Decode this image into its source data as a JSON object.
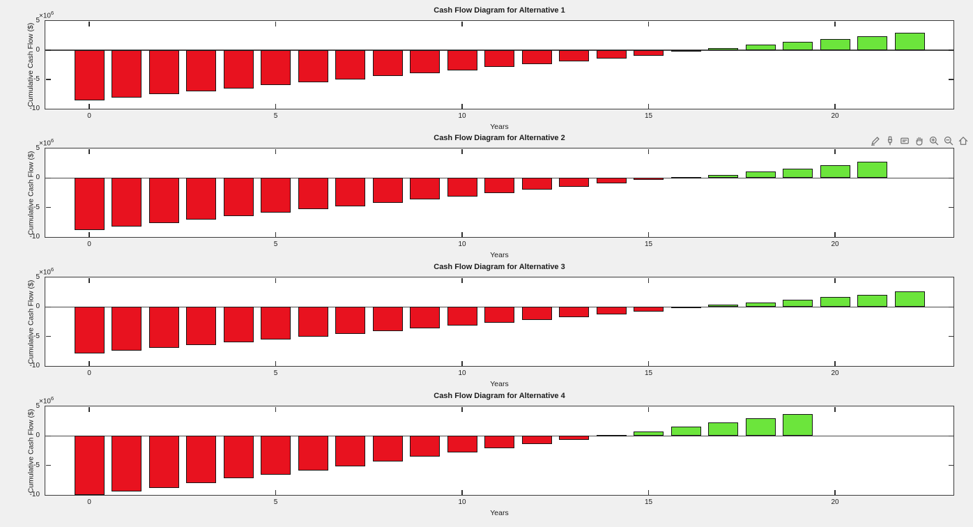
{
  "figure": {
    "background_color": "#f0f0f0",
    "axes_background_color": "#ffffff",
    "axis_line_color": "#3a3a3a",
    "text_color": "#1c1c1c",
    "negative_bar_color": "#e8121f",
    "positive_bar_color": "#6ce53c",
    "bar_edge_color": "#151515",
    "toolbar_icon_color": "#737373"
  },
  "toolbar": {
    "icons": [
      {
        "name": "export-icon"
      },
      {
        "name": "brush-icon"
      },
      {
        "name": "datatips-icon"
      },
      {
        "name": "pan-icon"
      },
      {
        "name": "zoom-in-icon"
      },
      {
        "name": "zoom-out-icon"
      },
      {
        "name": "restore-view-icon"
      }
    ]
  },
  "chart_data": [
    {
      "type": "bar",
      "title": "Cash Flow Diagram for Alternative 1",
      "xlabel": "Years",
      "ylabel": "Cumulative Cash Flow ($)",
      "y_axis_offset": {
        "base": "×10",
        "exponent": "6"
      },
      "values_unit": "millions of $ (×10^6)",
      "ylim": [
        -10,
        5
      ],
      "yticks": [
        5,
        0,
        -5,
        -10
      ],
      "y_tick_labels": [
        "5",
        "0",
        "-5",
        "-10"
      ],
      "xticks": [
        0,
        5,
        10,
        15,
        20
      ],
      "x_tick_labels": [
        "0",
        "5",
        "10",
        "15",
        "20"
      ],
      "years": [
        0,
        1,
        2,
        3,
        4,
        5,
        6,
        7,
        8,
        9,
        10,
        11,
        12,
        13,
        14,
        15,
        16,
        17,
        18,
        19,
        20,
        21,
        22
      ],
      "values": [
        -8.6,
        -8.05,
        -7.5,
        -7.0,
        -6.5,
        -6.0,
        -5.45,
        -4.95,
        -4.4,
        -3.9,
        -3.4,
        -2.9,
        -2.4,
        -1.9,
        -1.4,
        -0.9,
        -0.2,
        0.35,
        0.9,
        1.4,
        1.9,
        2.4,
        2.95
      ],
      "colors": {
        "negative": "#e8121f",
        "positive": "#6ce53c"
      },
      "grid": false
    },
    {
      "type": "bar",
      "title": "Cash Flow Diagram for Alternative 2",
      "xlabel": "Years",
      "ylabel": "Cumulative Cash Flow ($)",
      "y_axis_offset": {
        "base": "×10",
        "exponent": "6"
      },
      "values_unit": "millions of $ (×10^6)",
      "ylim": [
        -10,
        5
      ],
      "yticks": [
        5,
        0,
        -5,
        -10
      ],
      "y_tick_labels": [
        "5",
        "0",
        "-5",
        "-10"
      ],
      "xticks": [
        0,
        5,
        10,
        15,
        20
      ],
      "x_tick_labels": [
        "0",
        "5",
        "10",
        "15",
        "20"
      ],
      "years": [
        0,
        1,
        2,
        3,
        4,
        5,
        6,
        7,
        8,
        9,
        10,
        11,
        12,
        13,
        14,
        15,
        16,
        17,
        18,
        19,
        20,
        21
      ],
      "values": [
        -8.85,
        -8.2,
        -7.6,
        -7.0,
        -6.45,
        -5.9,
        -5.3,
        -4.8,
        -4.25,
        -3.65,
        -3.1,
        -2.55,
        -2.0,
        -1.45,
        -0.9,
        -0.35,
        0.05,
        0.5,
        1.05,
        1.55,
        2.15,
        2.8
      ],
      "colors": {
        "negative": "#e8121f",
        "positive": "#6ce53c"
      },
      "grid": false
    },
    {
      "type": "bar",
      "title": "Cash Flow Diagram for Alternative 3",
      "xlabel": "Years",
      "ylabel": "Cumulative Cash Flow ($)",
      "y_axis_offset": {
        "base": "×10",
        "exponent": "6"
      },
      "values_unit": "millions of $ (×10^6)",
      "ylim": [
        -10,
        5
      ],
      "yticks": [
        5,
        0,
        -5,
        -10
      ],
      "y_tick_labels": [
        "5",
        "0",
        "-5",
        "-10"
      ],
      "xticks": [
        0,
        5,
        10,
        15,
        20
      ],
      "x_tick_labels": [
        "0",
        "5",
        "10",
        "15",
        "20"
      ],
      "years": [
        0,
        1,
        2,
        3,
        4,
        5,
        6,
        7,
        8,
        9,
        10,
        11,
        12,
        13,
        14,
        15,
        16,
        17,
        18,
        19,
        20,
        21,
        22
      ],
      "values": [
        -7.9,
        -7.4,
        -6.95,
        -6.5,
        -6.0,
        -5.55,
        -5.05,
        -4.6,
        -4.1,
        -3.65,
        -3.15,
        -2.7,
        -2.2,
        -1.75,
        -1.3,
        -0.8,
        -0.1,
        0.35,
        0.7,
        1.25,
        1.7,
        2.1,
        2.6
      ],
      "colors": {
        "negative": "#e8121f",
        "positive": "#6ce53c"
      },
      "grid": false
    },
    {
      "type": "bar",
      "title": "Cash Flow Diagram for Alternative 4",
      "xlabel": "Years",
      "ylabel": "Cumulative Cash Flow ($)",
      "y_axis_offset": {
        "base": "×10",
        "exponent": "6"
      },
      "values_unit": "millions of $ (×10^6)",
      "ylim": [
        -10,
        5
      ],
      "yticks": [
        5,
        0,
        -5,
        -10
      ],
      "y_tick_labels": [
        "5",
        "0",
        "-5",
        "-10"
      ],
      "xticks": [
        0,
        5,
        10,
        15,
        20
      ],
      "x_tick_labels": [
        "0",
        "5",
        "10",
        "15",
        "20"
      ],
      "years": [
        0,
        1,
        2,
        3,
        4,
        5,
        6,
        7,
        8,
        9,
        10,
        11,
        12,
        13,
        14,
        15,
        16,
        17,
        18,
        19
      ],
      "values": [
        -10.0,
        -9.4,
        -8.8,
        -8.0,
        -7.2,
        -6.6,
        -5.9,
        -5.1,
        -4.3,
        -3.5,
        -2.8,
        -2.1,
        -1.4,
        -0.65,
        0.05,
        0.7,
        1.55,
        2.25,
        3.0,
        3.7
      ],
      "colors": {
        "negative": "#e8121f",
        "positive": "#6ce53c"
      },
      "grid": false
    }
  ]
}
